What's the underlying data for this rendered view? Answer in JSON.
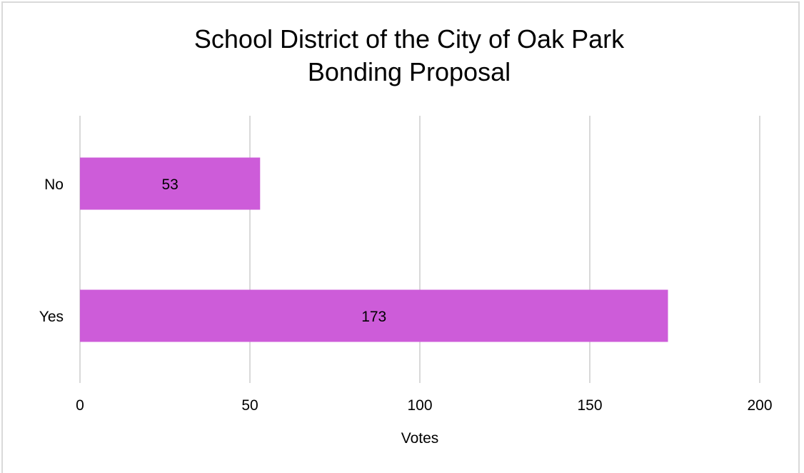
{
  "chart_data": {
    "type": "bar",
    "orientation": "horizontal",
    "title": [
      "School District of the City of Oak Park",
      "Bonding Proposal"
    ],
    "categories": [
      "No",
      "Yes"
    ],
    "values": [
      53,
      173
    ],
    "xlabel": "Votes",
    "ylabel": "",
    "xlim": [
      0,
      200
    ],
    "x_ticks": [
      0,
      50,
      100,
      150,
      200
    ],
    "grid": "vertical",
    "legend": "none",
    "data_labels": true,
    "bar_color": "#cd5cd9",
    "gridline_color": "#d9d9d9",
    "frame_color": "#d9d9d9"
  }
}
